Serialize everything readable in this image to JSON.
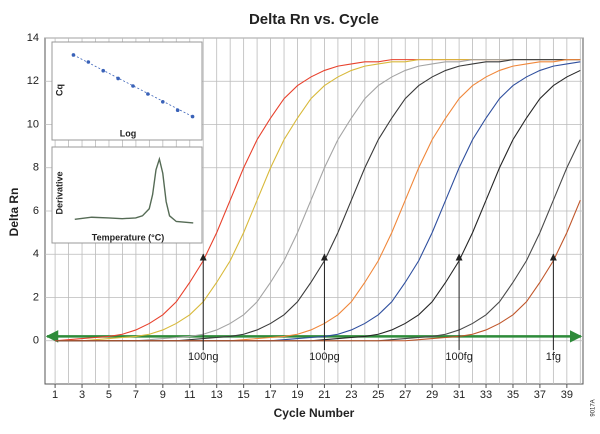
{
  "chart_data": [
    {
      "type": "line",
      "title": "Delta Rn vs. Cycle",
      "xlabel": "Cycle Number",
      "ylabel": "Delta Rn",
      "x": [
        1,
        2,
        3,
        4,
        5,
        6,
        7,
        8,
        9,
        10,
        11,
        12,
        13,
        14,
        15,
        16,
        17,
        18,
        19,
        20,
        21,
        22,
        23,
        24,
        25,
        26,
        27,
        28,
        29,
        30,
        31,
        32,
        33,
        34,
        35,
        36,
        37,
        38,
        39,
        40
      ],
      "xlim": [
        0.25,
        40.2
      ],
      "xticks": [
        1,
        3,
        5,
        7,
        9,
        11,
        13,
        15,
        17,
        19,
        21,
        23,
        25,
        27,
        29,
        31,
        33,
        35,
        37,
        39
      ],
      "ylim": [
        -2,
        14
      ],
      "yticks": [
        0,
        2,
        4,
        6,
        8,
        10,
        12,
        14
      ],
      "grid": true,
      "xgrid": true,
      "threshold": 0.2,
      "threshold_color": "#2e8b3a",
      "series": [
        {
          "color": "#e8412c",
          "values": [
            0,
            0.05,
            0.1,
            0.15,
            0.2,
            0.3,
            0.5,
            0.8,
            1.2,
            1.8,
            2.7,
            3.7,
            5.0,
            6.5,
            8.0,
            9.3,
            10.3,
            11.2,
            11.8,
            12.2,
            12.5,
            12.7,
            12.8,
            12.9,
            12.9,
            13,
            13,
            13,
            13,
            13,
            13,
            13,
            13,
            13,
            13,
            13,
            13,
            13,
            13,
            13
          ]
        },
        {
          "color": "#d8b93a",
          "values": [
            0,
            0,
            0,
            0.05,
            0.1,
            0.15,
            0.2,
            0.3,
            0.5,
            0.8,
            1.2,
            1.8,
            2.7,
            3.7,
            5.0,
            6.5,
            8.0,
            9.3,
            10.3,
            11.2,
            11.8,
            12.2,
            12.5,
            12.7,
            12.8,
            12.9,
            12.9,
            13,
            13,
            13,
            13,
            13,
            13,
            13,
            13,
            13,
            13,
            13,
            13,
            13
          ]
        },
        {
          "color": "#a4a4a4",
          "values": [
            0,
            0,
            0,
            0,
            0,
            0,
            0,
            0.05,
            0.1,
            0.15,
            0.2,
            0.3,
            0.5,
            0.8,
            1.2,
            1.8,
            2.7,
            3.7,
            5.0,
            6.5,
            8.0,
            9.3,
            10.3,
            11.2,
            11.8,
            12.2,
            12.5,
            12.7,
            12.8,
            12.9,
            12.9,
            13,
            13,
            13,
            13,
            13,
            13,
            13,
            13,
            13
          ]
        },
        {
          "color": "#3a3a3a",
          "values": [
            0,
            0,
            0,
            0,
            0,
            0,
            0,
            0,
            0,
            0,
            0.05,
            0.1,
            0.15,
            0.2,
            0.3,
            0.5,
            0.8,
            1.2,
            1.8,
            2.7,
            3.7,
            5.0,
            6.5,
            8.0,
            9.3,
            10.3,
            11.2,
            11.8,
            12.2,
            12.5,
            12.7,
            12.8,
            12.9,
            12.9,
            13,
            13,
            13,
            13,
            13,
            13
          ]
        },
        {
          "color": "#f0873a",
          "values": [
            0,
            0,
            0,
            0,
            0,
            0,
            0,
            0,
            0,
            0,
            0,
            0,
            0,
            0,
            0.05,
            0.1,
            0.15,
            0.2,
            0.3,
            0.5,
            0.8,
            1.2,
            1.8,
            2.7,
            3.7,
            5.0,
            6.5,
            8.0,
            9.3,
            10.3,
            11.2,
            11.8,
            12.2,
            12.5,
            12.7,
            12.8,
            12.9,
            12.9,
            13,
            13
          ]
        },
        {
          "color": "#2f4f9e",
          "values": [
            0,
            0,
            0,
            0,
            0,
            0,
            0,
            0,
            0,
            0,
            0,
            0,
            0,
            0,
            0,
            0,
            0,
            0.05,
            0.1,
            0.15,
            0.2,
            0.3,
            0.5,
            0.8,
            1.2,
            1.8,
            2.7,
            3.7,
            5.0,
            6.5,
            8.0,
            9.3,
            10.3,
            11.2,
            11.8,
            12.2,
            12.5,
            12.7,
            12.8,
            12.9
          ]
        },
        {
          "color": "#262626",
          "values": [
            0,
            0,
            0,
            0,
            0,
            0,
            0,
            0,
            0,
            0,
            0,
            0,
            0,
            0,
            0,
            0,
            0,
            0,
            0,
            0,
            0.05,
            0.1,
            0.15,
            0.2,
            0.3,
            0.5,
            0.8,
            1.2,
            1.8,
            2.7,
            3.7,
            5.0,
            6.5,
            8.0,
            9.3,
            10.3,
            11.2,
            11.8,
            12.2,
            12.5
          ]
        },
        {
          "color": "#4a4a4a",
          "values": [
            0,
            0,
            0,
            0,
            0,
            0,
            0,
            0,
            0,
            0,
            0,
            0,
            0,
            0,
            0,
            0,
            0,
            0,
            0,
            0,
            0,
            0,
            0,
            0,
            0,
            0.05,
            0.1,
            0.15,
            0.2,
            0.3,
            0.5,
            0.8,
            1.2,
            1.8,
            2.7,
            3.7,
            5.0,
            6.5,
            8.0,
            9.3
          ]
        },
        {
          "color": "#c0562a",
          "values": [
            0,
            0,
            0,
            0,
            0,
            0,
            0,
            0,
            0,
            0,
            0,
            0,
            0,
            0,
            0,
            0,
            0,
            0,
            0,
            0,
            0,
            0,
            0,
            0,
            0,
            0,
            0,
            0.05,
            0.1,
            0.15,
            0.2,
            0.3,
            0.5,
            0.8,
            1.2,
            1.8,
            2.7,
            3.7,
            5.0,
            6.5
          ]
        }
      ],
      "annotations": [
        {
          "text": "100ng",
          "x": 12,
          "y": 4
        },
        {
          "text": "100pg",
          "x": 21,
          "y": 4
        },
        {
          "text": "100fg",
          "x": 31,
          "y": 4
        },
        {
          "text": "1fg",
          "x": 38,
          "y": 4
        }
      ],
      "figure_code": "9017A"
    },
    {
      "type": "scatter",
      "xlabel": "Log",
      "ylabel": "Cq",
      "x": [
        -6,
        -5,
        -4,
        -3,
        -2,
        -1,
        0,
        1,
        2
      ],
      "values": [
        38.2,
        35.2,
        31.5,
        28.2,
        25,
        21.6,
        18.3,
        14.7,
        12
      ],
      "xlim": [
        -6.5,
        2.5
      ],
      "ylim": [
        8,
        42
      ],
      "color": "#3a62b8"
    },
    {
      "type": "line",
      "xlabel": "Temperature (°C)",
      "ylabel": "Derivative",
      "x": [
        60,
        65,
        70,
        74,
        78,
        80,
        82,
        83,
        84,
        85,
        86,
        87,
        88,
        90,
        95
      ],
      "xlim": [
        58,
        97
      ],
      "ylim": [
        0,
        1.1
      ],
      "series": [
        {
          "color": "#556b55",
          "values": [
            0.15,
            0.18,
            0.17,
            0.16,
            0.17,
            0.2,
            0.3,
            0.5,
            0.85,
            1.0,
            0.8,
            0.4,
            0.2,
            0.12,
            0.1
          ]
        }
      ]
    }
  ]
}
